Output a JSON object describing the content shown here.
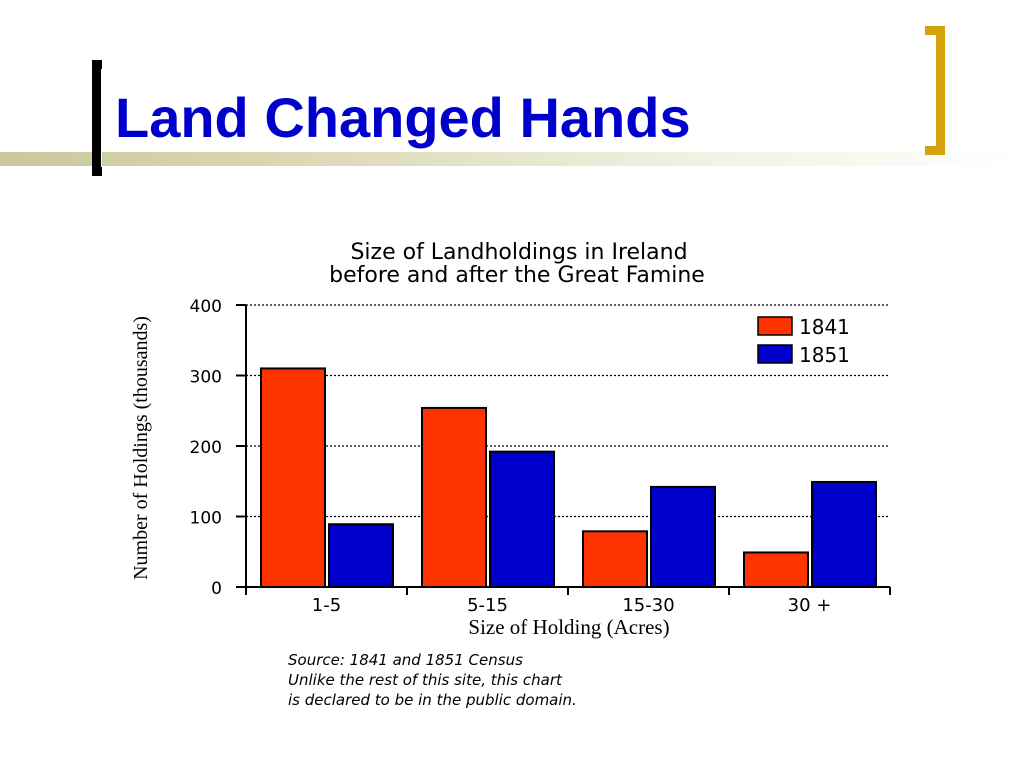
{
  "slide": {
    "title": "Land Changed Hands",
    "accent_color": "#d4a20f",
    "title_color": "#0000cc"
  },
  "chart_data": {
    "type": "bar",
    "title": "Size of Landholdings in Ireland",
    "subtitle": "before and after the Great Famine",
    "xlabel": "Size of Holding (Acres)",
    "ylabel": "Number of Holdings (thousands)",
    "categories": [
      "1-5",
      "5-15",
      "15-30",
      "30 +"
    ],
    "series": [
      {
        "name": "1841",
        "color": "#ff3300",
        "values": [
          310,
          254,
          79,
          49
        ]
      },
      {
        "name": "1851",
        "color": "#0000cc",
        "values": [
          89,
          192,
          142,
          149
        ]
      }
    ],
    "ylim": [
      0,
      400
    ],
    "yticks": [
      "0",
      "100",
      "200",
      "300",
      "400"
    ],
    "grid": true,
    "legend_position": "top-right",
    "notes": [
      "Source: 1841 and 1851 Census",
      "Unlike the rest of this site, this chart",
      "is declared to be in the public domain."
    ]
  }
}
